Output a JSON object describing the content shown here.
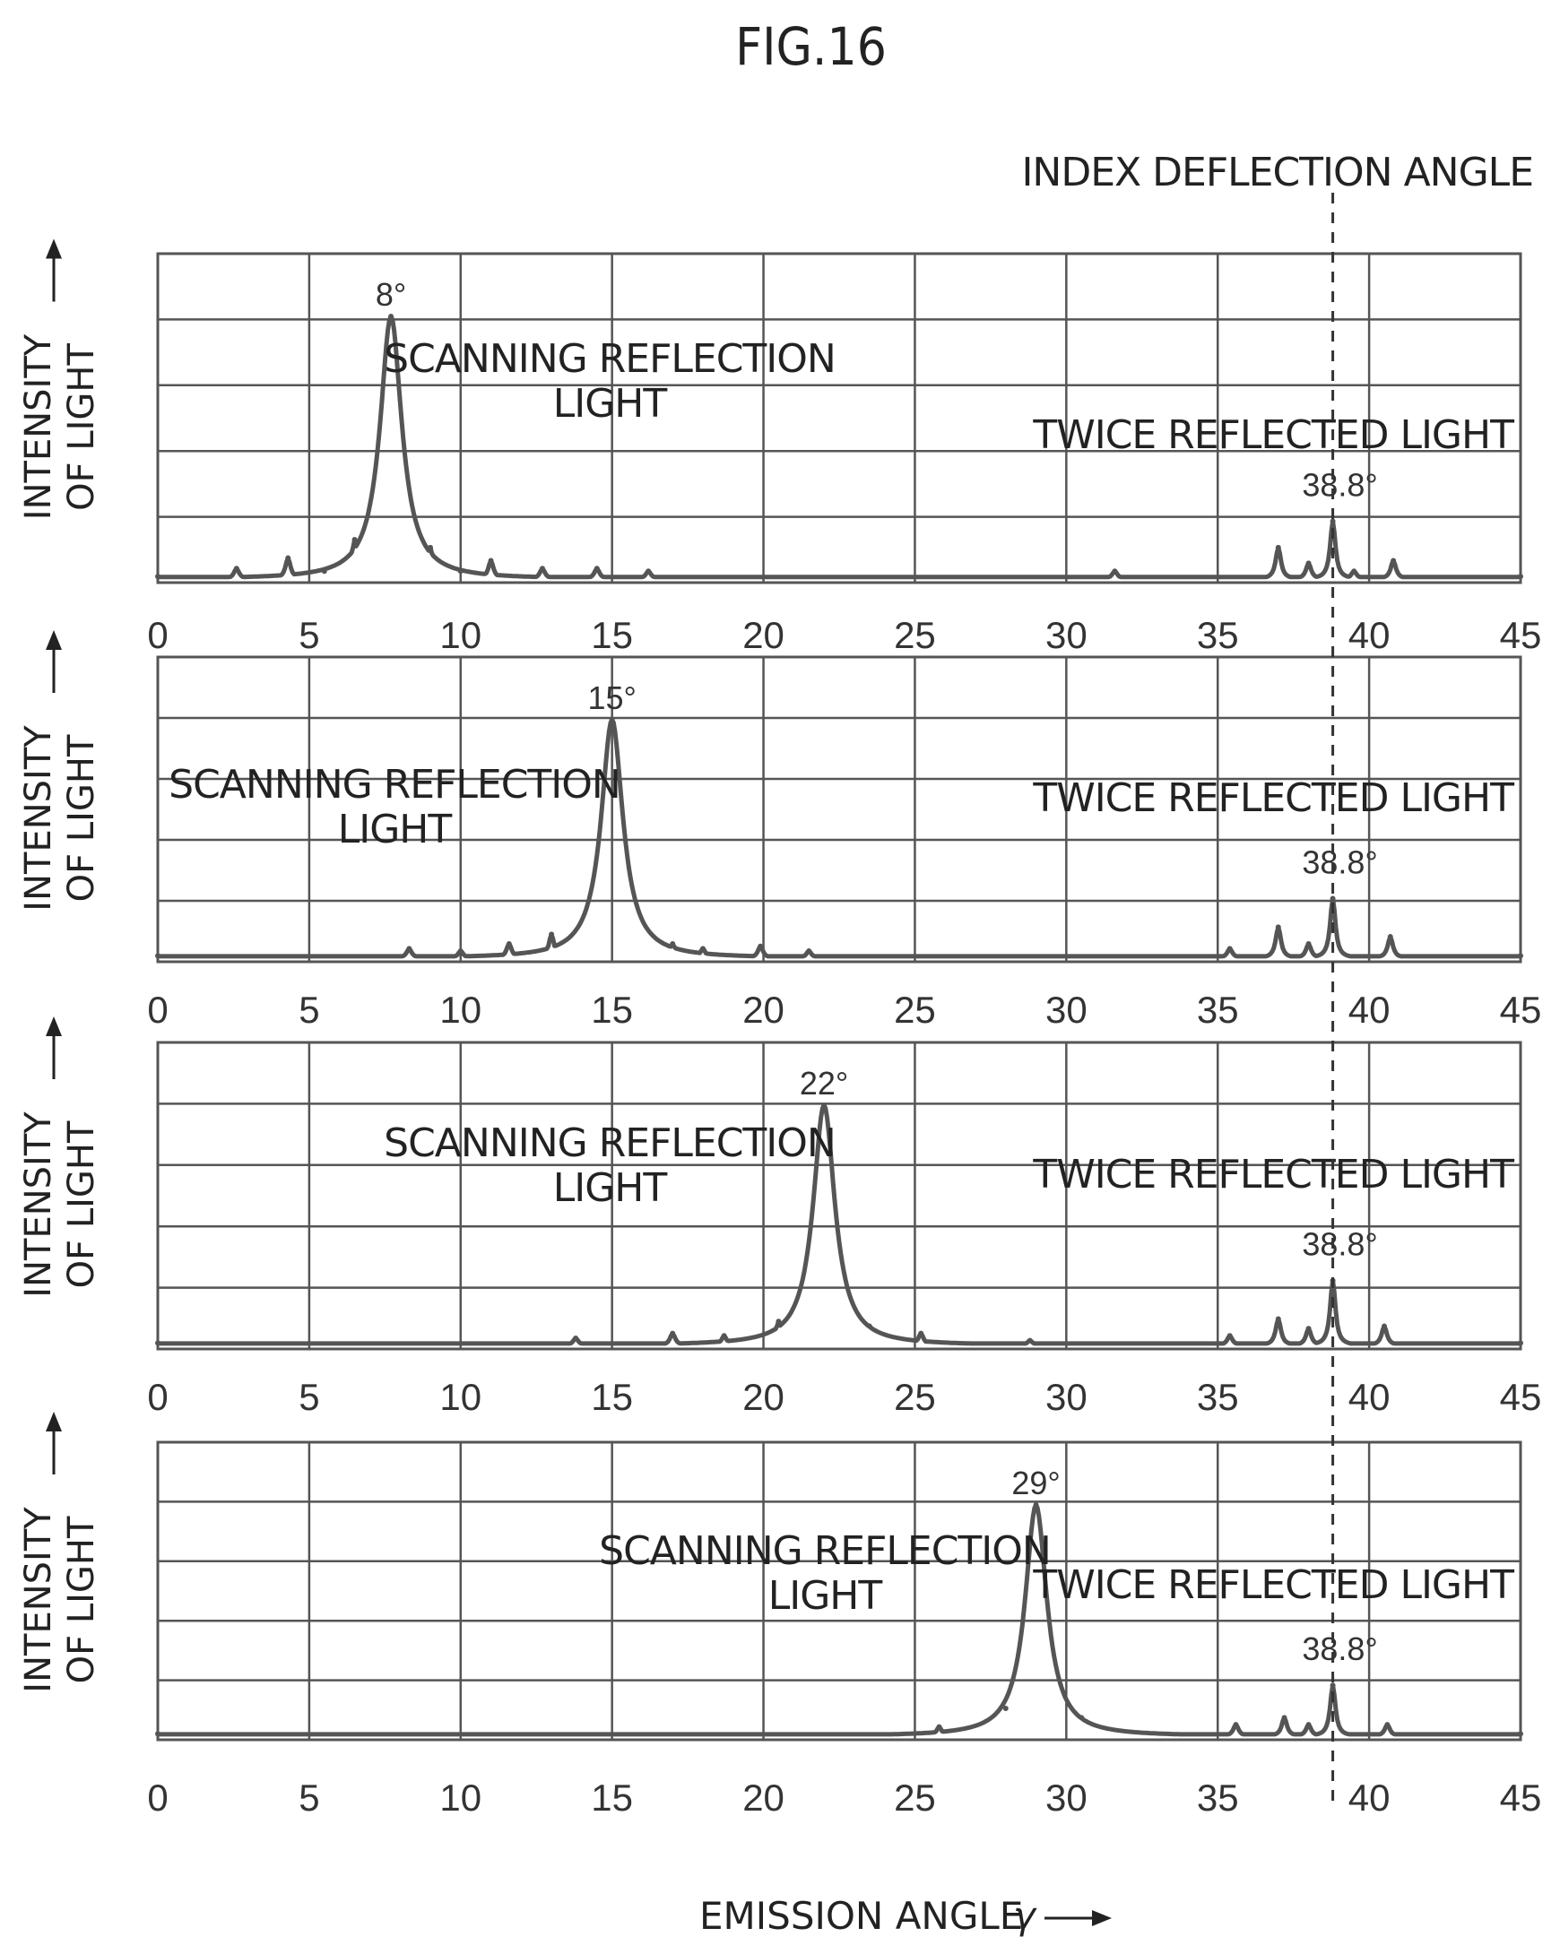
{
  "figure_title": "FIG.16",
  "index_label": "INDEX DEFLECTION ANGLE",
  "x_axis_label": "EMISSION ANGLE",
  "x_axis_symbol": "γ",
  "y_axis_label_line1": "INTENSITY",
  "y_axis_label_line2": "OF LIGHT",
  "scanning_label_line1": "SCANNING REFLECTION",
  "scanning_label_line2": "LIGHT",
  "twice_label": "TWICE REFLECTED LIGHT",
  "colors": {
    "curve": "#555555",
    "grid": "#555555",
    "text": "#222222"
  },
  "chart_data": [
    {
      "type": "line",
      "xlim": [
        0,
        45
      ],
      "ylim": [
        0,
        1
      ],
      "xticks": [
        0,
        5,
        10,
        15,
        20,
        25,
        30,
        35,
        40,
        45
      ],
      "tick_labels": [
        "0",
        "5",
        "10",
        "15",
        "20",
        "25",
        "30",
        "35",
        "40",
        "45"
      ],
      "grid": true,
      "index_deflection_angle": 38.8,
      "scanning_peak": {
        "x": 7.7,
        "height": 1.0,
        "label": "8°"
      },
      "twice_peak": {
        "x": 38.8,
        "height": 0.22,
        "label": "38.8°"
      },
      "series": [
        {
          "x": [
            0,
            2.6,
            4.3,
            5.5,
            6.5,
            7.7,
            9.0,
            10.0,
            11.0,
            12.7,
            14.5,
            16.2,
            31.6,
            37.0,
            38.0,
            38.8,
            39.5,
            40.8,
            45
          ],
          "y": [
            0.01,
            0.04,
            0.08,
            0.03,
            0.15,
            1.0,
            0.12,
            0.03,
            0.07,
            0.04,
            0.04,
            0.03,
            0.03,
            0.12,
            0.06,
            0.22,
            0.03,
            0.07,
            0.01
          ]
        }
      ]
    },
    {
      "type": "line",
      "xlim": [
        0,
        45
      ],
      "ylim": [
        0,
        1
      ],
      "xticks": [
        0,
        5,
        10,
        15,
        20,
        25,
        30,
        35,
        40,
        45
      ],
      "tick_labels": [
        "0",
        "5",
        "10",
        "15",
        "20",
        "25",
        "30",
        "35",
        "40",
        "45"
      ],
      "grid": true,
      "index_deflection_angle": 38.8,
      "scanning_peak": {
        "x": 15.0,
        "height": 1.0,
        "label": "15°"
      },
      "twice_peak": {
        "x": 38.8,
        "height": 0.25,
        "label": "38.8°"
      },
      "series": [
        {
          "x": [
            0,
            8.3,
            10.0,
            11.6,
            13.0,
            15.0,
            17.0,
            18.0,
            19.9,
            21.5,
            35.4,
            37.0,
            38.0,
            38.8,
            40.7,
            45
          ],
          "y": [
            0.01,
            0.04,
            0.03,
            0.06,
            0.1,
            1.0,
            0.06,
            0.04,
            0.05,
            0.03,
            0.04,
            0.13,
            0.06,
            0.25,
            0.09,
            0.01
          ]
        }
      ]
    },
    {
      "type": "line",
      "xlim": [
        0,
        45
      ],
      "ylim": [
        0,
        1
      ],
      "xticks": [
        0,
        5,
        10,
        15,
        20,
        25,
        30,
        35,
        40,
        45
      ],
      "tick_labels": [
        "0",
        "5",
        "10",
        "15",
        "20",
        "25",
        "30",
        "35",
        "40",
        "45"
      ],
      "grid": true,
      "index_deflection_angle": 38.8,
      "scanning_peak": {
        "x": 22.0,
        "height": 1.0,
        "label": "22°"
      },
      "twice_peak": {
        "x": 38.8,
        "height": 0.27,
        "label": "38.8°"
      },
      "series": [
        {
          "x": [
            0,
            13.8,
            17.0,
            18.7,
            20.5,
            22.0,
            23.5,
            25.2,
            28.8,
            35.4,
            37.0,
            38.0,
            38.8,
            40.5,
            45
          ],
          "y": [
            0.01,
            0.03,
            0.05,
            0.04,
            0.1,
            1.0,
            0.08,
            0.05,
            0.02,
            0.04,
            0.11,
            0.07,
            0.27,
            0.08,
            0.01
          ]
        }
      ]
    },
    {
      "type": "line",
      "xlim": [
        0,
        45
      ],
      "ylim": [
        0,
        1
      ],
      "xticks": [
        0,
        5,
        10,
        15,
        20,
        25,
        30,
        35,
        40,
        45
      ],
      "tick_labels": [
        "0",
        "5",
        "10",
        "15",
        "20",
        "25",
        "30",
        "35",
        "40",
        "45"
      ],
      "grid": true,
      "index_deflection_angle": 38.8,
      "scanning_peak": {
        "x": 29.0,
        "height": 1.0,
        "label": "29°"
      },
      "twice_peak": {
        "x": 38.8,
        "height": 0.22,
        "label": "38.8°"
      },
      "series": [
        {
          "x": [
            0,
            25.8,
            28.0,
            29.0,
            30.5,
            35.6,
            37.2,
            38.0,
            38.8,
            40.6,
            45
          ],
          "y": [
            0.01,
            0.04,
            0.12,
            1.0,
            0.08,
            0.05,
            0.08,
            0.05,
            0.22,
            0.05,
            0.01
          ]
        }
      ]
    }
  ]
}
